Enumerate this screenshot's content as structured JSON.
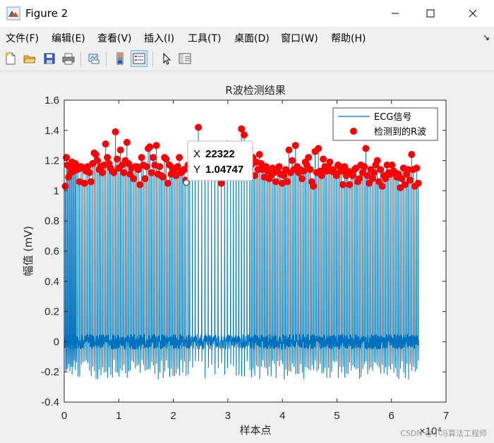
{
  "window": {
    "title": "Figure 2"
  },
  "menu": [
    "文件(F)",
    "编辑(E)",
    "查看(V)",
    "插入(I)",
    "工具(T)",
    "桌面(D)",
    "窗口(W)",
    "帮助(H)"
  ],
  "toolbar": [
    "new-file-icon",
    "open-folder-icon",
    "save-icon",
    "print-icon",
    "link-plot-icon",
    "insert-colorbar-icon",
    "insert-legend-icon",
    "pointer-icon",
    "property-editor-icon"
  ],
  "datatip": {
    "x_label": "X",
    "x_value": "22322",
    "y_label": "Y",
    "y_value": "1.04747"
  },
  "watermark": "CSDN @小冯算法工程师",
  "chart_data": {
    "type": "line",
    "title": "R波检测结果",
    "xlabel": "样本点",
    "ylabel": "幅值 (mV)",
    "xlim": [
      0,
      7
    ],
    "ylim": [
      -0.4,
      1.6
    ],
    "x_multiplier": "×10⁴",
    "x_ticks": [
      "0",
      "1",
      "2",
      "3",
      "4",
      "5",
      "6",
      "7"
    ],
    "y_ticks": [
      "-0.4",
      "-0.2",
      "0",
      "0.2",
      "0.4",
      "0.6",
      "0.8",
      "1",
      "1.2",
      "1.4",
      "1.6"
    ],
    "legend_position": "top-right",
    "series": [
      {
        "name": "ECG信号",
        "color": "#0072bd",
        "x_range": [
          0,
          6.5
        ],
        "baseline_range": [
          -0.05,
          0.05
        ],
        "r_peak_range": [
          1.02,
          1.42
        ],
        "s_wave_range": [
          -0.25,
          -0.12
        ]
      },
      {
        "name": "检测到的R波",
        "color": "#ff0000",
        "marker": "circle"
      }
    ],
    "r_peaks": [
      [
        0.02,
        1.03
      ],
      [
        0.04,
        1.22
      ],
      [
        0.06,
        1.17
      ],
      [
        0.08,
        1.09
      ],
      [
        0.1,
        1.16
      ],
      [
        0.12,
        1.12
      ],
      [
        0.14,
        1.19
      ],
      [
        0.16,
        1.15
      ],
      [
        0.18,
        1.13
      ],
      [
        0.2,
        1.18
      ],
      [
        0.22,
        1.17
      ],
      [
        0.25,
        1.14
      ],
      [
        0.28,
        1.06
      ],
      [
        0.31,
        1.16
      ],
      [
        0.34,
        1.15
      ],
      [
        0.37,
        1.05
      ],
      [
        0.4,
        1.13
      ],
      [
        0.43,
        1.16
      ],
      [
        0.46,
        1.12
      ],
      [
        0.49,
        1.06
      ],
      [
        0.52,
        1.18
      ],
      [
        0.55,
        1.25
      ],
      [
        0.58,
        1.24
      ],
      [
        0.61,
        1.2
      ],
      [
        0.64,
        1.14
      ],
      [
        0.67,
        1.16
      ],
      [
        0.7,
        1.12
      ],
      [
        0.73,
        1.17
      ],
      [
        0.76,
        1.31
      ],
      [
        0.79,
        1.22
      ],
      [
        0.82,
        1.18
      ],
      [
        0.85,
        1.15
      ],
      [
        0.88,
        1.13
      ],
      [
        0.91,
        1.12
      ],
      [
        0.94,
        1.39
      ],
      [
        0.97,
        1.21
      ],
      [
        1.0,
        1.15
      ],
      [
        1.03,
        1.27
      ],
      [
        1.06,
        1.17
      ],
      [
        1.09,
        1.12
      ],
      [
        1.12,
        1.2
      ],
      [
        1.15,
        1.32
      ],
      [
        1.18,
        1.18
      ],
      [
        1.21,
        1.11
      ],
      [
        1.24,
        1.15
      ],
      [
        1.27,
        1.08
      ],
      [
        1.3,
        1.16
      ],
      [
        1.33,
        1.16
      ],
      [
        1.36,
        1.14
      ],
      [
        1.39,
        1.04
      ],
      [
        1.42,
        1.22
      ],
      [
        1.45,
        1.17
      ],
      [
        1.48,
        1.08
      ],
      [
        1.51,
        1.16
      ],
      [
        1.54,
        1.28
      ],
      [
        1.57,
        1.29
      ],
      [
        1.6,
        1.12
      ],
      [
        1.63,
        1.22
      ],
      [
        1.66,
        1.17
      ],
      [
        1.69,
        1.3
      ],
      [
        1.72,
        1.11
      ],
      [
        1.75,
        1.16
      ],
      [
        1.78,
        1.1
      ],
      [
        1.81,
        1.09
      ],
      [
        1.84,
        1.22
      ],
      [
        1.87,
        1.21
      ],
      [
        1.9,
        1.05
      ],
      [
        1.93,
        1.17
      ],
      [
        1.96,
        1.11
      ],
      [
        1.99,
        1.15
      ],
      [
        2.02,
        1.14
      ],
      [
        2.05,
        1.1
      ],
      [
        2.08,
        1.16
      ],
      [
        2.11,
        1.22
      ],
      [
        2.14,
        1.12
      ],
      [
        2.17,
        1.13
      ],
      [
        2.2,
        1.14
      ],
      [
        2.23,
        1.07
      ],
      [
        2.27,
        1.17
      ],
      [
        2.3,
        1.14
      ],
      [
        2.35,
        1.13
      ],
      [
        2.4,
        1.18
      ],
      [
        2.46,
        1.42
      ],
      [
        2.52,
        1.2
      ],
      [
        2.58,
        1.22
      ],
      [
        2.64,
        1.14
      ],
      [
        2.7,
        1.17
      ],
      [
        2.76,
        1.22
      ],
      [
        2.82,
        1.18
      ],
      [
        2.88,
        1.05
      ],
      [
        2.94,
        1.24
      ],
      [
        2.99,
        1.31
      ],
      [
        3.05,
        1.2
      ],
      [
        3.1,
        1.17
      ],
      [
        3.15,
        1.2
      ],
      [
        3.2,
        1.25
      ],
      [
        3.25,
        1.41
      ],
      [
        3.3,
        1.37
      ],
      [
        3.35,
        1.22
      ],
      [
        3.4,
        1.28
      ],
      [
        3.43,
        1.17
      ],
      [
        3.46,
        1.22
      ],
      [
        3.49,
        1.1
      ],
      [
        3.52,
        1.19
      ],
      [
        3.55,
        1.14
      ],
      [
        3.58,
        1.24
      ],
      [
        3.61,
        1.18
      ],
      [
        3.64,
        1.14
      ],
      [
        3.67,
        1.09
      ],
      [
        3.7,
        1.16
      ],
      [
        3.73,
        1.13
      ],
      [
        3.76,
        1.08
      ],
      [
        3.79,
        1.1
      ],
      [
        3.82,
        1.15
      ],
      [
        3.85,
        1.12
      ],
      [
        3.88,
        1.06
      ],
      [
        3.91,
        1.13
      ],
      [
        3.94,
        1.16
      ],
      [
        3.97,
        1.11
      ],
      [
        4.0,
        1.05
      ],
      [
        4.03,
        1.1
      ],
      [
        4.06,
        1.14
      ],
      [
        4.09,
        1.06
      ],
      [
        4.12,
        1.27
      ],
      [
        4.15,
        1.12
      ],
      [
        4.18,
        1.2
      ],
      [
        4.21,
        1.14
      ],
      [
        4.24,
        1.3
      ],
      [
        4.27,
        1.16
      ],
      [
        4.3,
        1.12
      ],
      [
        4.33,
        1.14
      ],
      [
        4.36,
        1.08
      ],
      [
        4.39,
        1.13
      ],
      [
        4.42,
        1.19
      ],
      [
        4.45,
        1.17
      ],
      [
        4.48,
        1.22
      ],
      [
        4.51,
        1.14
      ],
      [
        4.54,
        1.06
      ],
      [
        4.57,
        1.03
      ],
      [
        4.6,
        1.26
      ],
      [
        4.63,
        1.12
      ],
      [
        4.66,
        1.28
      ],
      [
        4.69,
        1.13
      ],
      [
        4.72,
        1.1
      ],
      [
        4.75,
        1.21
      ],
      [
        4.78,
        1.16
      ],
      [
        4.81,
        1.13
      ],
      [
        4.84,
        1.16
      ],
      [
        4.87,
        1.19
      ],
      [
        4.9,
        1.13
      ],
      [
        4.93,
        1.14
      ],
      [
        4.96,
        1.12
      ],
      [
        4.99,
        1.1
      ],
      [
        5.02,
        1.17
      ],
      [
        5.05,
        1.16
      ],
      [
        5.08,
        1.13
      ],
      [
        5.11,
        1.04
      ],
      [
        5.14,
        1.16
      ],
      [
        5.17,
        1.1
      ],
      [
        5.2,
        1.13
      ],
      [
        5.23,
        1.04
      ],
      [
        5.26,
        1.12
      ],
      [
        5.29,
        1.1
      ],
      [
        5.32,
        1.14
      ],
      [
        5.35,
        1.15
      ],
      [
        5.38,
        1.06
      ],
      [
        5.41,
        1.08
      ],
      [
        5.44,
        1.17
      ],
      [
        5.47,
        1.12
      ],
      [
        5.5,
        1.16
      ],
      [
        5.53,
        1.28
      ],
      [
        5.56,
        1.1
      ],
      [
        5.59,
        1.05
      ],
      [
        5.62,
        1.14
      ],
      [
        5.65,
        1.08
      ],
      [
        5.68,
        1.12
      ],
      [
        5.71,
        1.17
      ],
      [
        5.74,
        1.2
      ],
      [
        5.77,
        1.06
      ],
      [
        5.8,
        1.14
      ],
      [
        5.83,
        1.03
      ],
      [
        5.86,
        1.1
      ],
      [
        5.89,
        1.08
      ],
      [
        5.92,
        1.17
      ],
      [
        5.95,
        1.12
      ],
      [
        5.98,
        1.11
      ],
      [
        6.01,
        1.17
      ],
      [
        6.04,
        1.13
      ],
      [
        6.07,
        1.12
      ],
      [
        6.1,
        1.09
      ],
      [
        6.13,
        1.11
      ],
      [
        6.16,
        1.02
      ],
      [
        6.19,
        1.08
      ],
      [
        6.22,
        1.15
      ],
      [
        6.25,
        1.04
      ],
      [
        6.28,
        1.11
      ],
      [
        6.31,
        1.14
      ],
      [
        6.34,
        1.07
      ],
      [
        6.37,
        1.24
      ],
      [
        6.4,
        1.14
      ],
      [
        6.43,
        1.03
      ],
      [
        6.46,
        1.15
      ],
      [
        6.49,
        1.05
      ]
    ]
  }
}
